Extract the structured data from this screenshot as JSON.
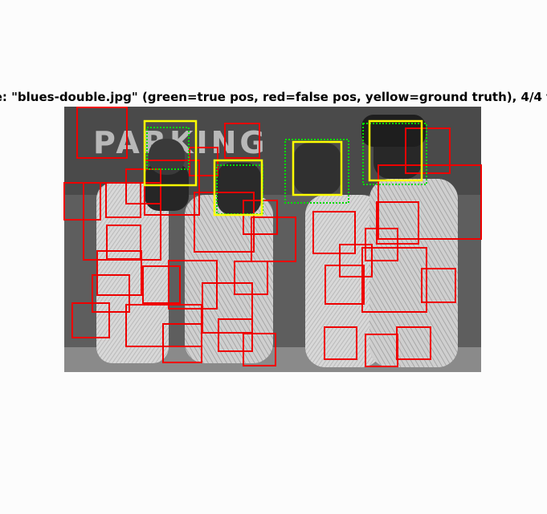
{
  "figure": {
    "title": "e: \"blues-double.jpg\" (green=true pos, red=false pos, yellow=ground truth), 4/4 t"
  },
  "image": {
    "name": "blues-double.jpg",
    "sign_text": "PARKING"
  },
  "legend_colors": {
    "true_pos": "#00dd00",
    "false_pos": "#ee0000",
    "ground_truth": "#ffff00"
  },
  "detections": {
    "ground_truth_count": 4,
    "found_count": 4
  }
}
